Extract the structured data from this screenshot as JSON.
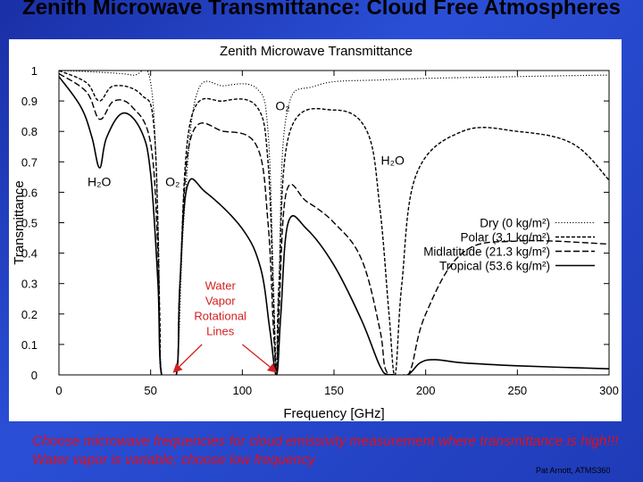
{
  "slide": {
    "title": "Zenith Microwave Transmittance: Cloud Free Atmospheres",
    "caption": "Choose microwave frequencies for cloud emissivity measurement where transmittance is high!!! Water vapor is variable; choose low frequency",
    "credit": "Pat Arnott, ATMS360"
  },
  "chart_data": {
    "type": "line",
    "title": "Zenith Microwave Transmittance",
    "xlabel": "Frequency [GHz]",
    "ylabel": "Transmittance",
    "xlim": [
      0,
      300
    ],
    "ylim": [
      0,
      1
    ],
    "xticks": [
      "0",
      "50",
      "100",
      "150",
      "200",
      "250",
      "300"
    ],
    "yticks": [
      "0",
      "0.1",
      "0.2",
      "0.3",
      "0.4",
      "0.5",
      "0.6",
      "0.7",
      "0.8",
      "0.9",
      "1"
    ],
    "grid": false,
    "legend_position": "right",
    "series": [
      {
        "name": "Dry (0 kg/m²)",
        "dash": "dotted",
        "points": [
          [
            0,
            1
          ],
          [
            20,
            0.995
          ],
          [
            40,
            0.985
          ],
          [
            50,
            0.96
          ],
          [
            54,
            0.5
          ],
          [
            56,
            0
          ],
          [
            64,
            0
          ],
          [
            68,
            0.5
          ],
          [
            75,
            0.92
          ],
          [
            90,
            0.95
          ],
          [
            108,
            0.94
          ],
          [
            114,
            0.8
          ],
          [
            117,
            0.3
          ],
          [
            118.7,
            0
          ],
          [
            120,
            0.3
          ],
          [
            124,
            0.85
          ],
          [
            140,
            0.95
          ],
          [
            180,
            0.97
          ],
          [
            250,
            0.98
          ],
          [
            300,
            0.985
          ]
        ]
      },
      {
        "name": "Polar (3.1 kg/m²)",
        "dash": "densely-dashed",
        "points": [
          [
            0,
            1
          ],
          [
            15,
            0.96
          ],
          [
            22,
            0.9
          ],
          [
            30,
            0.95
          ],
          [
            45,
            0.92
          ],
          [
            52,
            0.8
          ],
          [
            55,
            0.2
          ],
          [
            56,
            0
          ],
          [
            64,
            0
          ],
          [
            66,
            0.3
          ],
          [
            72,
            0.84
          ],
          [
            90,
            0.9
          ],
          [
            108,
            0.88
          ],
          [
            114,
            0.7
          ],
          [
            117,
            0.25
          ],
          [
            118.7,
            0
          ],
          [
            120,
            0.3
          ],
          [
            126,
            0.8
          ],
          [
            150,
            0.87
          ],
          [
            168,
            0.8
          ],
          [
            175,
            0.55
          ],
          [
            180,
            0.2
          ],
          [
            183.3,
            0
          ],
          [
            187,
            0.3
          ],
          [
            195,
            0.66
          ],
          [
            220,
            0.8
          ],
          [
            250,
            0.8
          ],
          [
            280,
            0.76
          ],
          [
            300,
            0.64
          ]
        ]
      },
      {
        "name": "Midlatitude (21.3 kg/m²)",
        "dash": "dashed",
        "points": [
          [
            0,
            0.99
          ],
          [
            15,
            0.93
          ],
          [
            22.2,
            0.84
          ],
          [
            30,
            0.9
          ],
          [
            40,
            0.88
          ],
          [
            50,
            0.76
          ],
          [
            54,
            0.4
          ],
          [
            56,
            0
          ],
          [
            64,
            0
          ],
          [
            66,
            0.3
          ],
          [
            72,
            0.78
          ],
          [
            90,
            0.8
          ],
          [
            108,
            0.75
          ],
          [
            114,
            0.5
          ],
          [
            117,
            0.15
          ],
          [
            118.7,
            0
          ],
          [
            120,
            0.2
          ],
          [
            124,
            0.6
          ],
          [
            135,
            0.57
          ],
          [
            150,
            0.5
          ],
          [
            165,
            0.38
          ],
          [
            175,
            0.15
          ],
          [
            178,
            0.02
          ],
          [
            183.3,
            0
          ],
          [
            188,
            0
          ],
          [
            192,
            0.02
          ],
          [
            200,
            0.2
          ],
          [
            220,
            0.4
          ],
          [
            250,
            0.44
          ],
          [
            300,
            0.43
          ]
        ]
      },
      {
        "name": "Tropical (53.6 kg/m²)",
        "dash": "solid",
        "points": [
          [
            0,
            0.98
          ],
          [
            12,
            0.88
          ],
          [
            18,
            0.78
          ],
          [
            22.2,
            0.68
          ],
          [
            26,
            0.78
          ],
          [
            35,
            0.86
          ],
          [
            45,
            0.8
          ],
          [
            50,
            0.66
          ],
          [
            54,
            0.3
          ],
          [
            56,
            0
          ],
          [
            64,
            0
          ],
          [
            66,
            0.3
          ],
          [
            70,
            0.62
          ],
          [
            80,
            0.6
          ],
          [
            100,
            0.48
          ],
          [
            110,
            0.35
          ],
          [
            115,
            0.15
          ],
          [
            118.7,
            0
          ],
          [
            121,
            0.2
          ],
          [
            125,
            0.5
          ],
          [
            135,
            0.48
          ],
          [
            150,
            0.36
          ],
          [
            165,
            0.18
          ],
          [
            175,
            0.03
          ],
          [
            180,
            0
          ],
          [
            190,
            0
          ],
          [
            197,
            0.04
          ],
          [
            205,
            0.05
          ],
          [
            220,
            0.04
          ],
          [
            250,
            0.03
          ],
          [
            300,
            0.02
          ]
        ]
      }
    ],
    "annotations": [
      {
        "text": "H₂O",
        "x": 22,
        "y": 0.62
      },
      {
        "text": "O₂",
        "x": 62,
        "y": 0.62
      },
      {
        "text": "O₂",
        "x": 122,
        "y": 0.87
      },
      {
        "text": "H₂O",
        "x": 182,
        "y": 0.69
      }
    ],
    "arrow_annotation": {
      "lines": [
        "Water",
        "Vapor",
        "Rotational",
        "Lines"
      ],
      "color": "#d42020",
      "targets": [
        [
          63,
          0
        ],
        [
          118,
          0
        ]
      ]
    }
  }
}
